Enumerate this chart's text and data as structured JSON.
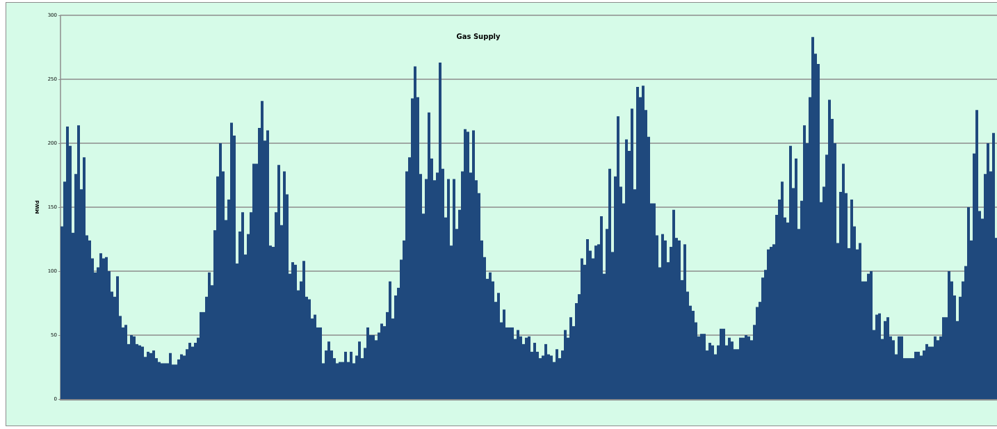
{
  "chart_data": {
    "type": "bar",
    "title": "Gas Supply",
    "ylabel": "MWd",
    "color": "#1f497d",
    "ylim": [
      0,
      300
    ],
    "yticks": [
      0,
      50,
      100,
      150,
      200,
      250,
      300
    ],
    "grid": "y",
    "categories": [
      null,
      null,
      null,
      null,
      null,
      null,
      null,
      null,
      null,
      null,
      null,
      null,
      null,
      null,
      null,
      null,
      null,
      null,
      null,
      null,
      null,
      null,
      null,
      null,
      null,
      null,
      null,
      null,
      null,
      null,
      null,
      null,
      null,
      null,
      null,
      null,
      null,
      null,
      null,
      null,
      null,
      null,
      null,
      null,
      null,
      null,
      null,
      null,
      null,
      null,
      null,
      null,
      null,
      null,
      null,
      null,
      null,
      null,
      null,
      null,
      null,
      null,
      null,
      null,
      null,
      null,
      null,
      null,
      null,
      null,
      null,
      null,
      null,
      null,
      null,
      null,
      null,
      null,
      null,
      null,
      null,
      null,
      null,
      null,
      null,
      null,
      null,
      null,
      null,
      null,
      null,
      null,
      null,
      null,
      null,
      null,
      null,
      null,
      null,
      null,
      null,
      null,
      null,
      null,
      null,
      null,
      null,
      null,
      null,
      null,
      null,
      null,
      null,
      null,
      null,
      null,
      null,
      null,
      null,
      null,
      null,
      null,
      null,
      null,
      null,
      null,
      null,
      null,
      null,
      null,
      null,
      null,
      null,
      null,
      null,
      null,
      null,
      null,
      null,
      null,
      null,
      null,
      null,
      null,
      null,
      null,
      null,
      null,
      null,
      null,
      null,
      null,
      null,
      null,
      null,
      null,
      null,
      null,
      null,
      null,
      null,
      null,
      null,
      null,
      null,
      null,
      null,
      null,
      null,
      null,
      null,
      null,
      null,
      null,
      null,
      null,
      null,
      null,
      null,
      null,
      null,
      null,
      null,
      null,
      null,
      null,
      null,
      null,
      null,
      null,
      null,
      null,
      null,
      null,
      null,
      null,
      null,
      null,
      null,
      null,
      null,
      null,
      null,
      null,
      null,
      null,
      null,
      null,
      null,
      null,
      null,
      null,
      null,
      null,
      null,
      null,
      null,
      null,
      null,
      null,
      null,
      null,
      null,
      null,
      null,
      null,
      null,
      null,
      null,
      null,
      null,
      null,
      null,
      null,
      null,
      null,
      null,
      null,
      null,
      null,
      null,
      null,
      null,
      null,
      null,
      null,
      null,
      null,
      null,
      null,
      null,
      null,
      null,
      null,
      null,
      null,
      null,
      null,
      null,
      null,
      null,
      null,
      null,
      null,
      null,
      null,
      null,
      null,
      null,
      null,
      null,
      null,
      null,
      null,
      null,
      null,
      null,
      null,
      null,
      null,
      null,
      null,
      null,
      null,
      null,
      null,
      null,
      null,
      null,
      null,
      null,
      null,
      null,
      null,
      null,
      null,
      null,
      null,
      null,
      null,
      null,
      null,
      null,
      null,
      null,
      null,
      null,
      null,
      null,
      null,
      null,
      null,
      null,
      null,
      null,
      null,
      null,
      null,
      null,
      null,
      null,
      null,
      null,
      null,
      null,
      null,
      null,
      null,
      null,
      null,
      null,
      null,
      null,
      null,
      null,
      null,
      null
    ],
    "values": [
      135,
      170,
      213,
      198,
      130,
      176,
      214,
      164,
      189,
      128,
      124,
      110,
      99,
      103,
      114,
      110,
      111,
      100,
      84,
      80,
      96,
      65,
      56,
      58,
      43,
      50,
      49,
      43,
      42,
      41,
      33,
      37,
      36,
      38,
      32,
      29,
      28,
      28,
      28,
      36,
      27,
      27,
      31,
      35,
      34,
      39,
      44,
      41,
      44,
      48,
      68,
      68,
      80,
      99,
      89,
      132,
      174,
      200,
      178,
      140,
      156,
      216,
      206,
      106,
      131,
      146,
      113,
      129,
      146,
      184,
      184,
      212,
      233,
      202,
      210,
      120,
      119,
      146,
      183,
      136,
      178,
      160,
      98,
      107,
      105,
      85,
      92,
      108,
      80,
      78,
      63,
      66,
      56,
      56,
      28,
      38,
      45,
      38,
      32,
      28,
      29,
      29,
      37,
      29,
      37,
      28,
      34,
      45,
      32,
      40,
      56,
      50,
      50,
      46,
      52,
      59,
      57,
      68,
      92,
      63,
      81,
      87,
      109,
      124,
      178,
      189,
      235,
      260,
      236,
      176,
      145,
      172,
      224,
      188,
      171,
      177,
      263,
      180,
      142,
      172,
      120,
      172,
      133,
      148,
      178,
      211,
      209,
      177,
      210,
      171,
      161,
      124,
      111,
      94,
      99,
      92,
      76,
      83,
      60,
      70,
      56,
      56,
      56,
      47,
      54,
      49,
      43,
      48,
      49,
      37,
      44,
      37,
      32,
      34,
      43,
      35,
      34,
      29,
      39,
      32,
      38,
      54,
      48,
      64,
      57,
      75,
      82,
      110,
      105,
      125,
      116,
      110,
      120,
      121,
      143,
      98,
      133,
      180,
      115,
      174,
      221,
      166,
      153,
      203,
      194,
      227,
      164,
      244,
      236,
      245,
      226,
      205,
      153,
      153,
      128,
      103,
      129,
      124,
      107,
      119,
      148,
      126,
      124,
      93,
      121,
      84,
      73,
      69,
      60,
      49,
      51,
      51,
      38,
      44,
      42,
      35,
      42,
      55,
      55,
      42,
      48,
      45,
      39,
      39,
      48,
      48,
      50,
      49,
      46,
      58,
      72,
      76,
      95,
      101,
      117,
      119,
      121,
      144,
      156,
      170,
      142,
      138,
      198,
      165,
      188,
      133,
      155,
      214,
      200,
      236,
      283,
      270,
      262,
      154,
      166,
      191,
      234,
      219,
      200,
      122,
      162,
      184,
      161,
      118,
      156,
      135,
      117,
      122,
      92,
      92,
      98,
      100,
      54,
      66,
      67,
      47,
      61,
      64,
      49,
      46,
      35,
      49,
      49,
      32,
      32,
      32,
      32,
      37,
      37,
      34,
      38,
      43,
      41,
      41,
      49,
      46,
      49,
      64,
      64,
      100,
      92,
      81,
      61,
      80,
      92,
      104,
      150,
      124,
      192,
      226,
      147,
      141,
      176,
      200,
      178,
      208,
      126
    ]
  }
}
